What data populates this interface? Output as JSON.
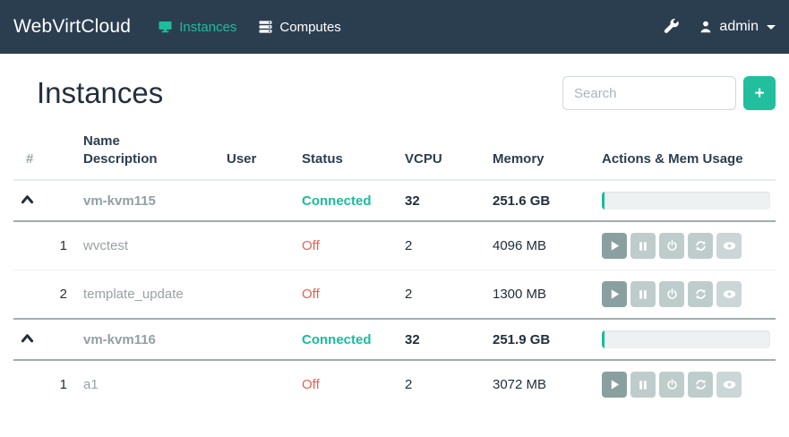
{
  "navbar": {
    "brand": "WebVirtCloud",
    "items": [
      {
        "label": "Instances",
        "icon": "display-icon",
        "active": true
      },
      {
        "label": "Computes",
        "icon": "server-icon",
        "active": false
      }
    ],
    "admin": {
      "label": "admin"
    }
  },
  "page": {
    "title": "Instances"
  },
  "search": {
    "placeholder": "Search"
  },
  "add_button": {
    "label": "+"
  },
  "table": {
    "headers": {
      "num": "#",
      "name": "Name",
      "description": "Description",
      "user": "User",
      "status": "Status",
      "vcpu": "VCPU",
      "memory": "Memory",
      "actions": "Actions & Mem Usage"
    }
  },
  "action_icons": [
    "play-icon",
    "pause-icon",
    "power-icon",
    "refresh-icon",
    "eye-icon"
  ],
  "groups": [
    {
      "host": "vm-kvm115",
      "status": "Connected",
      "vcpu": "32",
      "memory": "251.6 GB",
      "mem_usage_pct": 1.6,
      "instances": [
        {
          "num": "1",
          "name": "wvctest",
          "status": "Off",
          "vcpu": "2",
          "memory": "4096 MB"
        },
        {
          "num": "2",
          "name": "template_update",
          "status": "Off",
          "vcpu": "2",
          "memory": "1300 MB"
        }
      ]
    },
    {
      "host": "vm-kvm116",
      "status": "Connected",
      "vcpu": "32",
      "memory": "251.9 GB",
      "mem_usage_pct": 1.6,
      "instances": [
        {
          "num": "1",
          "name": "a1",
          "status": "Off",
          "vcpu": "2",
          "memory": "3072 MB"
        }
      ]
    }
  ],
  "colors": {
    "navbar_bg": "#2b3e50",
    "accent_teal": "#18bc9c",
    "status_off_red": "#e8604c",
    "button_dark": "#8aa0a0",
    "button_light": "#bfcccc"
  }
}
